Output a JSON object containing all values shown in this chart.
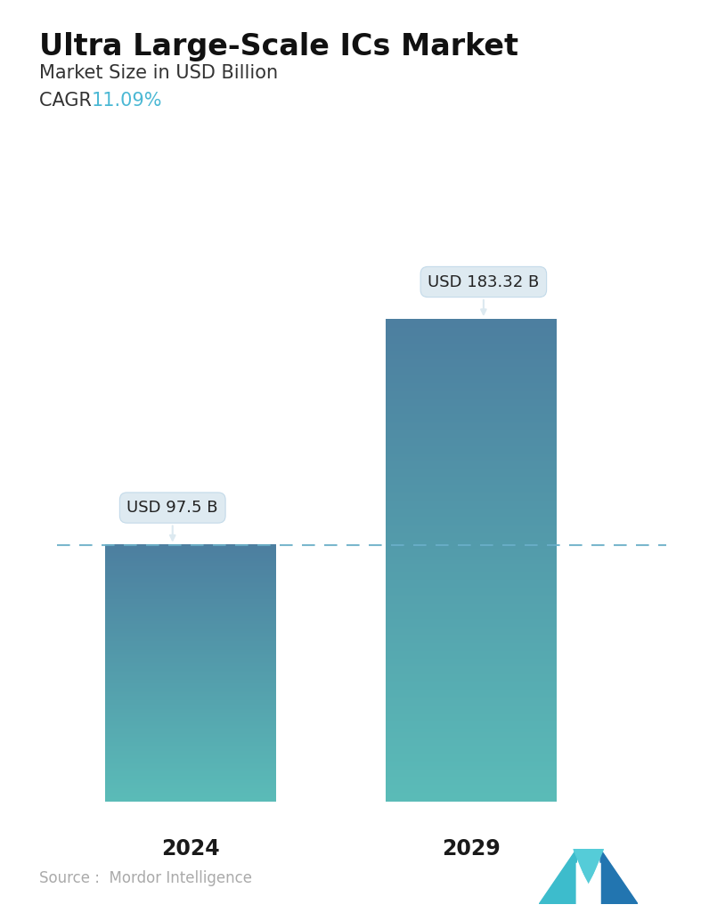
{
  "title": "Ultra Large-Scale ICs Market",
  "subtitle": "Market Size in USD Billion",
  "cagr_label": "CAGR  ",
  "cagr_value": "11.09%",
  "cagr_color": "#4bb8d4",
  "categories": [
    "2024",
    "2029"
  ],
  "values": [
    97.5,
    183.32
  ],
  "bar_labels": [
    "USD 97.5 B",
    "USD 183.32 B"
  ],
  "bar_color_top": "#4d7fa0",
  "bar_color_bottom": "#5bbcb8",
  "dashed_line_color": "#6aafc8",
  "dashed_line_y": 97.5,
  "source_text": "Source :  Mordor Intelligence",
  "source_color": "#aaaaaa",
  "background_color": "#ffffff",
  "title_fontsize": 24,
  "subtitle_fontsize": 15,
  "cagr_fontsize": 15,
  "bar_label_fontsize": 13,
  "xlabel_fontsize": 17,
  "ylim": [
    0,
    210
  ],
  "tooltip_bg_color": "#dce9f0",
  "tooltip_border_color": "#c0d8e8",
  "logo_colors": [
    "#3dbccc",
    "#2275b0",
    "#55ccd8"
  ]
}
